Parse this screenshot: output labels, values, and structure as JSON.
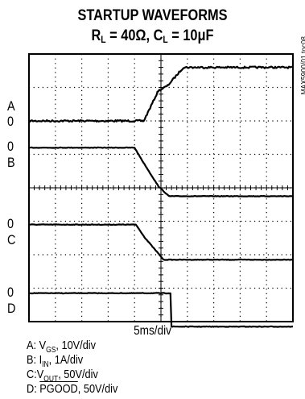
{
  "chart_data": {
    "type": "line",
    "title": "STARTUP WAVEFORMS",
    "subtitle_parts": {
      "r_sym": "R",
      "r_sub": "L",
      "r_val": " = 40Ω, ",
      "c_sym": "C",
      "c_sub": "L",
      "c_val": " = 10μF"
    },
    "xlabel": "5ms/div",
    "x_divisions": 10,
    "y_divisions": 8,
    "grid": true,
    "figure_id": "MAX5900/01 toc08",
    "channels": [
      {
        "letter": "A",
        "zero": "0",
        "zero_div": 2,
        "scale": "10V/div",
        "points": [
          [
            0,
            0
          ],
          [
            4.35,
            0
          ],
          [
            4.9,
            0.9
          ],
          [
            5.25,
            1.05
          ],
          [
            5.85,
            1.6
          ],
          [
            10,
            1.6
          ]
        ]
      },
      {
        "letter": "B",
        "zero": "0",
        "zero_div": 2.8,
        "scale": "1A/div",
        "points": [
          [
            0,
            0
          ],
          [
            4.0,
            0
          ],
          [
            4.3,
            -0.4
          ],
          [
            4.9,
            -1.15
          ],
          [
            5.3,
            -1.45
          ],
          [
            10,
            -1.45
          ]
        ]
      },
      {
        "letter": "C",
        "zero": "0",
        "zero_div": 5.1,
        "scale": "50V/div",
        "points": [
          [
            0,
            0
          ],
          [
            4.05,
            0
          ],
          [
            4.4,
            -0.4
          ],
          [
            5.1,
            -1.05
          ],
          [
            10,
            -1.05
          ]
        ]
      },
      {
        "letter": "D",
        "zero": "0",
        "zero_div": 7.15,
        "scale": "50V/div",
        "points": [
          [
            0,
            0
          ],
          [
            5.4,
            0
          ],
          [
            5.4,
            -1.0
          ],
          [
            10,
            -1.0
          ]
        ]
      }
    ]
  },
  "legend": [
    {
      "prefix": "A: V",
      "sub": "GS",
      "suffix": ", 10V/div"
    },
    {
      "prefix": "B: I",
      "sub": "IN",
      "suffix": ", 1A/div"
    },
    {
      "prefix": "C:V",
      "sub": "OUT",
      "suffix": ", 50V/div"
    },
    {
      "prefix": "D: ",
      "over": "PGOOD",
      "suffix": ", 50V/div"
    }
  ]
}
